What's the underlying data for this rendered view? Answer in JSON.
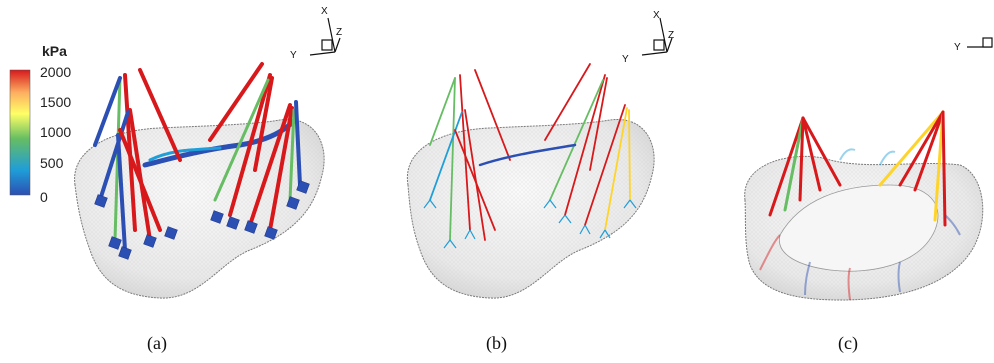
{
  "colorbar": {
    "unit": "kPa",
    "ticks": [
      "2000",
      "1500",
      "1000",
      "500",
      "0"
    ],
    "colors": [
      "#d7191c",
      "#fdae61",
      "#ffff66",
      "#66bd63",
      "#1f9ed8",
      "#2c4fb3"
    ]
  },
  "panels": [
    {
      "label": "(a)"
    },
    {
      "label": "(b)"
    },
    {
      "label": "(c)"
    }
  ],
  "axes": {
    "x": "X",
    "y": "Y",
    "z": "Z"
  }
}
